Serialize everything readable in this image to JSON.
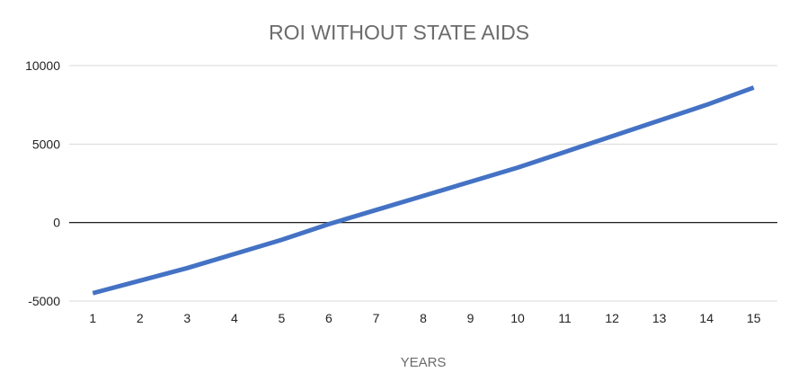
{
  "chart_data": {
    "type": "line",
    "title": "ROI WITHOUT STATE AIDS",
    "xlabel": "YEARS",
    "ylabel": "",
    "categories": [
      "1",
      "2",
      "3",
      "4",
      "5",
      "6",
      "7",
      "8",
      "9",
      "10",
      "11",
      "12",
      "13",
      "14",
      "15"
    ],
    "y_ticks": [
      "10000",
      "5000",
      "0",
      "-5000"
    ],
    "ylim": [
      -5000,
      10000
    ],
    "grid": true,
    "legend": "none",
    "series": [
      {
        "name": "ROI",
        "color": "#4472c4",
        "values": [
          -4500,
          -3700,
          -2900,
          -2000,
          -1100,
          -100,
          800,
          1700,
          2600,
          3500,
          4500,
          5500,
          6500,
          7500,
          8600
        ]
      }
    ]
  },
  "colors": {
    "gridline": "#d9d9d9",
    "zero_line": "#000000",
    "series": "#4472c4"
  }
}
